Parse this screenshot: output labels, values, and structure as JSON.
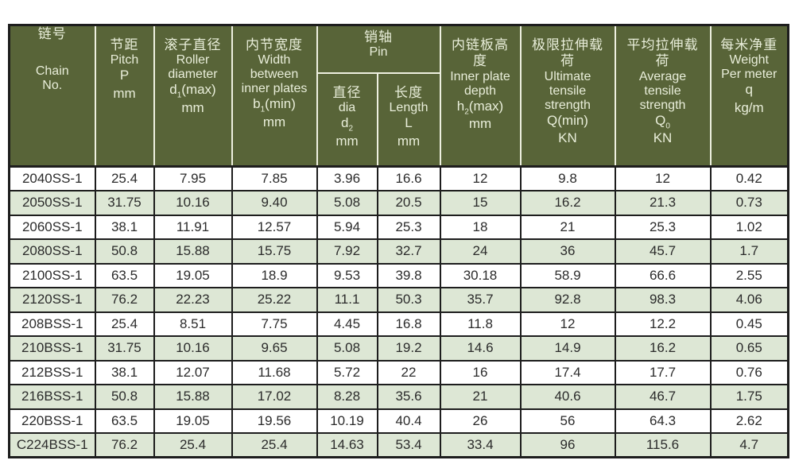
{
  "colors": {
    "header_bg": "#586438",
    "header_fg": "#e9eeda",
    "header_line": "#eef0e0",
    "border_dark": "#1d1d1d",
    "row_alt_bg": "#dde7d5",
    "row_bg": "#ffffff",
    "data_fg": "#2b2b2b"
  },
  "header": {
    "cols": [
      {
        "cn": "链号",
        "en": "Chain\nNo.",
        "sym": "",
        "sub": "",
        "rest": "",
        "unit": ""
      },
      {
        "cn": "节距",
        "en": "Pitch",
        "sym": "P",
        "sub": "",
        "rest": "",
        "unit": "mm"
      },
      {
        "cn": "滚子直径",
        "en": "Roller\ndiameter",
        "sym": "d",
        "sub": "1",
        "rest": "(max)",
        "unit": "mm"
      },
      {
        "cn": "内节宽度",
        "en": "Width\nbetween\ninner plates",
        "sym": "b",
        "sub": "1",
        "rest": "(min)",
        "unit": "mm"
      },
      {
        "cn": "销轴",
        "en": "Pin",
        "sym": "",
        "sub": "",
        "rest": "",
        "unit": ""
      },
      {
        "cn": "直径",
        "en": "dia",
        "sym": "d",
        "sub": "2",
        "rest": "",
        "unit": "mm"
      },
      {
        "cn": "长度",
        "en": "Length",
        "sym": "L",
        "sub": "",
        "rest": "",
        "unit": "mm"
      },
      {
        "cn": "内链板高\n度",
        "en": "Inner plate\ndepth",
        "sym": "h",
        "sub": "2",
        "rest": "(max)",
        "unit": "mm"
      },
      {
        "cn": "极限拉伸载\n荷",
        "en": "Ultimate\ntensile\nstrength",
        "sym": "Q",
        "sub": "",
        "rest": "(min)",
        "unit": "KN"
      },
      {
        "cn": "平均拉伸载\n荷",
        "en": "Average\ntensile\nstrength",
        "sym": "Q",
        "sub": "0",
        "rest": "",
        "unit": "KN"
      },
      {
        "cn": "每米净重",
        "en": "Weight\nPer meter",
        "sym": "q",
        "sub": "",
        "rest": "",
        "unit": "kg/m"
      }
    ]
  },
  "chart_data": {
    "type": "table",
    "title": "",
    "columns": [
      "Chain No. (链号)",
      "Pitch P mm (节距)",
      "Roller diameter d1(max) mm (滚子直径)",
      "Width between inner plates b1(min) mm (内节宽度)",
      "Pin dia d2 mm (销轴 直径)",
      "Pin Length L mm (销轴 长度)",
      "Inner plate depth h2(max) mm (内链板高度)",
      "Ultimate tensile strength Q(min) KN (极限拉伸载荷)",
      "Average tensile strength Q0 KN (平均拉伸载荷)",
      "Weight Per meter q kg/m (每米净重)"
    ],
    "column_keys": [
      "chain_no",
      "pitch_p_mm",
      "roller_diameter_d1max_mm",
      "width_inner_plates_b1min_mm",
      "pin_dia_d2_mm",
      "pin_length_l_mm",
      "inner_plate_depth_h2max_mm",
      "ultimate_tensile_qmin_kn",
      "average_tensile_q0_kn",
      "weight_per_meter_q_kgm"
    ],
    "rows": [
      [
        "2040SS-1",
        "25.4",
        "7.95",
        "7.85",
        "3.96",
        "16.6",
        "12",
        "9.8",
        "12",
        "0.42"
      ],
      [
        "2050SS-1",
        "31.75",
        "10.16",
        "9.40",
        "5.08",
        "20.5",
        "15",
        "16.2",
        "21.3",
        "0.73"
      ],
      [
        "2060SS-1",
        "38.1",
        "11.91",
        "12.57",
        "5.94",
        "25.3",
        "18",
        "21",
        "25.3",
        "1.02"
      ],
      [
        "2080SS-1",
        "50.8",
        "15.88",
        "15.75",
        "7.92",
        "32.7",
        "24",
        "36",
        "45.7",
        "1.7"
      ],
      [
        "2100SS-1",
        "63.5",
        "19.05",
        "18.9",
        "9.53",
        "39.8",
        "30.18",
        "58.9",
        "66.6",
        "2.55"
      ],
      [
        "2120SS-1",
        "76.2",
        "22.23",
        "25.22",
        "11.1",
        "50.3",
        "35.7",
        "92.8",
        "98.3",
        "4.06"
      ],
      [
        "208BSS-1",
        "25.4",
        "8.51",
        "7.75",
        "4.45",
        "16.8",
        "11.8",
        "12",
        "12.2",
        "0.45"
      ],
      [
        "210BSS-1",
        "31.75",
        "10.16",
        "9.65",
        "5.08",
        "19.2",
        "14.6",
        "14.9",
        "16.2",
        "0.65"
      ],
      [
        "212BSS-1",
        "38.1",
        "12.07",
        "11.68",
        "5.72",
        "22",
        "16",
        "17.4",
        "17.7",
        "0.76"
      ],
      [
        "216BSS-1",
        "50.8",
        "15.88",
        "17.02",
        "8.28",
        "35.6",
        "21",
        "40.6",
        "46.7",
        "1.75"
      ],
      [
        "220BSS-1",
        "63.5",
        "19.05",
        "19.56",
        "10.19",
        "40.4",
        "26",
        "56",
        "64.3",
        "2.62"
      ],
      [
        "C224BSS-1",
        "76.2",
        "25.4",
        "25.4",
        "14.63",
        "53.4",
        "33.4",
        "96",
        "115.6",
        "4.7"
      ]
    ]
  }
}
